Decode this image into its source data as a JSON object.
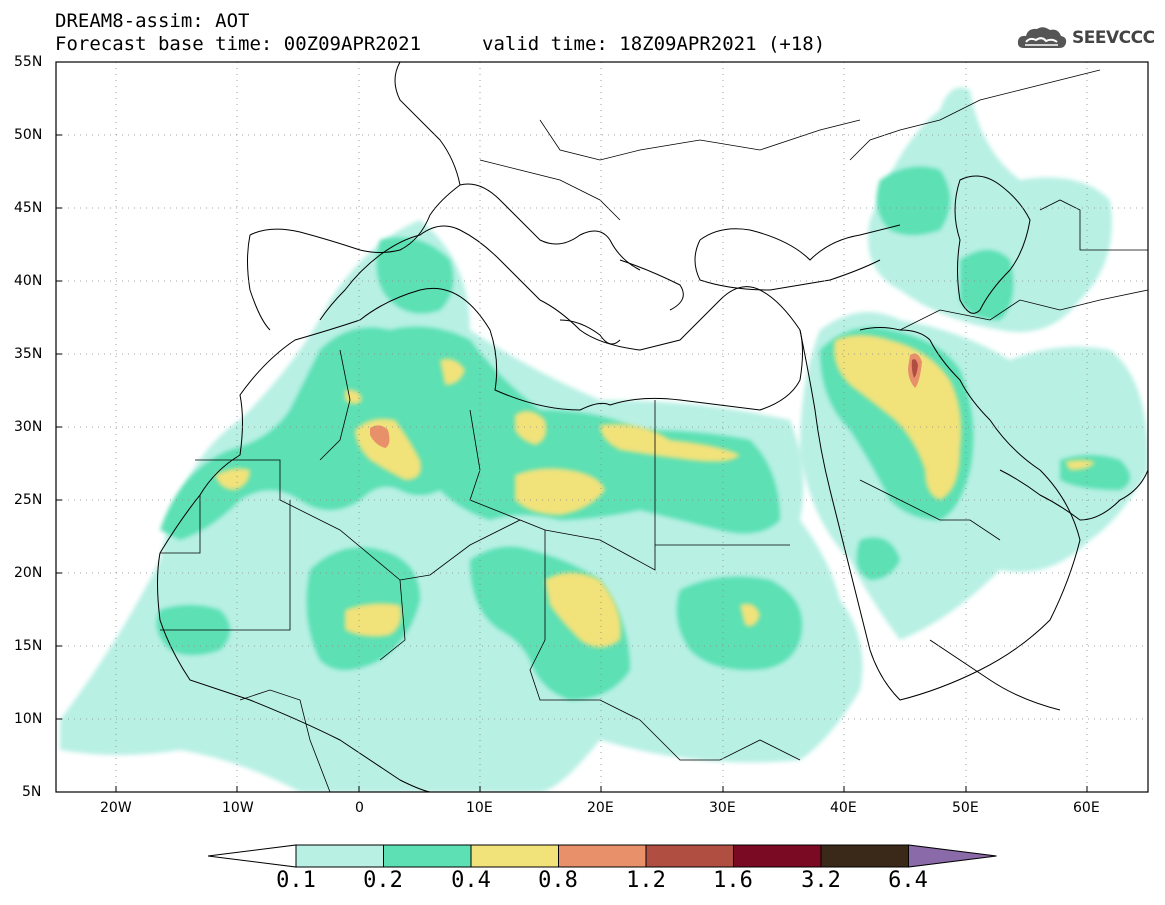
{
  "header": {
    "title": "DREAM8-assim: AOT",
    "forecast_base": "Forecast base time: 00Z09APR2021",
    "valid_time": "valid time: 18Z09APR2021 (+18)"
  },
  "logo": {
    "text": "SEEVCCC",
    "icon": "cloud-icon"
  },
  "map": {
    "lon_range": [
      -25,
      65
    ],
    "lat_range": [
      5,
      55
    ],
    "lat_ticks": [
      "55N",
      "50N",
      "45N",
      "40N",
      "35N",
      "30N",
      "25N",
      "20N",
      "15N",
      "10N",
      "5N"
    ],
    "lon_ticks": [
      "20W",
      "10W",
      "0",
      "10E",
      "20E",
      "30E",
      "40E",
      "50E",
      "60E"
    ],
    "field": "AOT"
  },
  "colorbar": {
    "labels": [
      "0.1",
      "0.2",
      "0.4",
      "0.8",
      "1.2",
      "1.6",
      "3.2",
      "6.4"
    ],
    "colors": [
      "#ffffff",
      "#b8f0e4",
      "#5ce0b4",
      "#f2e27a",
      "#e8906a",
      "#b04e42",
      "#7a0a24",
      "#3a2818",
      "#8a6aa8"
    ]
  }
}
